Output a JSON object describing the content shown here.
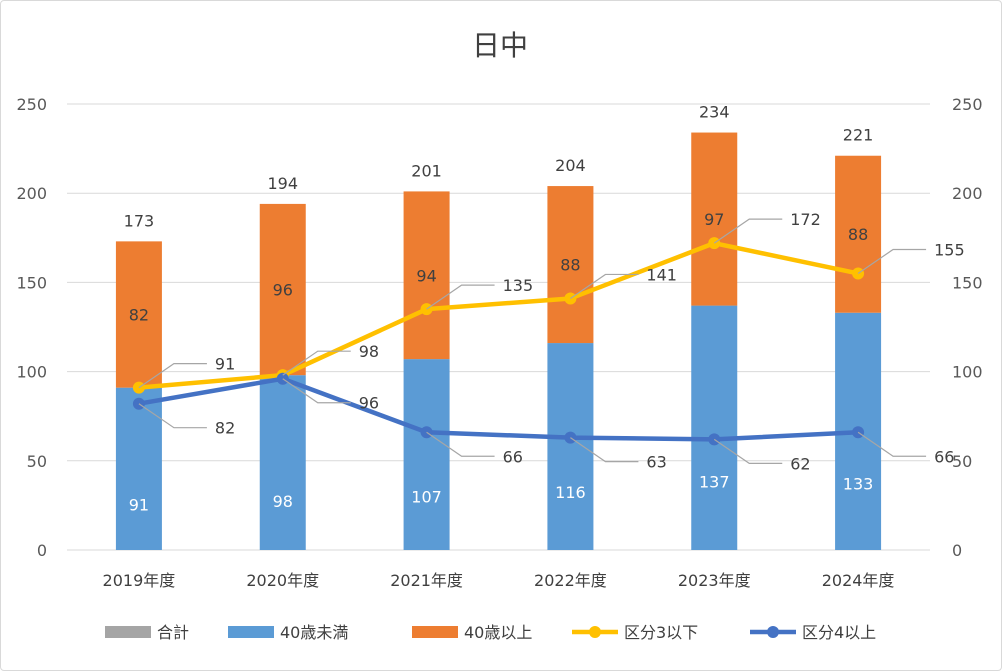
{
  "chart_data": {
    "type": "bar",
    "title": "日中",
    "categories": [
      "2019年度",
      "2020年度",
      "2021年度",
      "2022年度",
      "2023年度",
      "2024年度"
    ],
    "ylim": [
      0,
      250
    ],
    "y_ticks": [
      0,
      50,
      100,
      150,
      200,
      250
    ],
    "y2_ticks": [
      0,
      50,
      100,
      150,
      200,
      250
    ],
    "grid": true,
    "legend_position": "bottom",
    "series": [
      {
        "name": "合計",
        "kind": "total",
        "color": "#a5a5a5",
        "values": [
          173,
          194,
          201,
          204,
          234,
          221
        ]
      },
      {
        "name": "40歳未満",
        "kind": "bar",
        "color": "#5b9bd5",
        "values": [
          91,
          98,
          107,
          116,
          137,
          133
        ]
      },
      {
        "name": "40歳以上",
        "kind": "bar",
        "color": "#ed7d31",
        "values": [
          82,
          96,
          94,
          88,
          97,
          88
        ]
      },
      {
        "name": "区分3以下",
        "kind": "line",
        "color": "#ffc000",
        "values": [
          91,
          98,
          135,
          141,
          172,
          155
        ]
      },
      {
        "name": "区分4以上",
        "kind": "line",
        "color": "#4472c4",
        "values": [
          82,
          96,
          66,
          63,
          62,
          66
        ]
      }
    ]
  }
}
